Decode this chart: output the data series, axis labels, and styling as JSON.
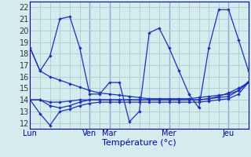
{
  "xlabel": "Température (°c)",
  "ylim": [
    11.5,
    22.5
  ],
  "xlim": [
    0,
    44
  ],
  "yticks": [
    12,
    13,
    14,
    15,
    16,
    17,
    18,
    19,
    20,
    21,
    22
  ],
  "xtick_positions": [
    0,
    12,
    16,
    28,
    40
  ],
  "xtick_labels": [
    "Lun",
    "Ven",
    "Mar",
    "Mer",
    "Jeu"
  ],
  "background_color": "#d4ecee",
  "grid_color": "#aacccc",
  "line_color": "#1a2ecc",
  "line_x": [
    0,
    2,
    4,
    6,
    8,
    10,
    12,
    14,
    16,
    18,
    20,
    22,
    24,
    26,
    28,
    30,
    32,
    34,
    36,
    38,
    40,
    42,
    44
  ],
  "line1_y": [
    18.5,
    16.5,
    16.0,
    15.7,
    15.4,
    15.1,
    14.8,
    14.6,
    14.5,
    14.4,
    14.3,
    14.2,
    14.1,
    14.1,
    14.1,
    14.1,
    14.1,
    14.2,
    14.3,
    14.4,
    14.5,
    14.8,
    15.6
  ],
  "line2_y": [
    14.0,
    12.8,
    11.8,
    13.0,
    13.2,
    13.5,
    13.7,
    13.8,
    13.8,
    13.8,
    13.8,
    13.8,
    13.8,
    13.8,
    13.8,
    13.8,
    13.8,
    13.8,
    13.9,
    14.0,
    14.1,
    14.5,
    15.5
  ],
  "line3_y": [
    14.0,
    14.0,
    13.8,
    13.8,
    13.9,
    14.0,
    14.0,
    14.0,
    14.0,
    14.0,
    14.0,
    14.0,
    14.0,
    14.0,
    14.0,
    14.0,
    14.0,
    14.0,
    14.1,
    14.2,
    14.3,
    14.8,
    15.5
  ],
  "line4_y": [
    14.0,
    14.0,
    13.5,
    13.3,
    13.5,
    13.8,
    14.0,
    14.0,
    14.0,
    14.0,
    14.0,
    14.0,
    14.0,
    14.0,
    14.0,
    14.0,
    14.0,
    14.0,
    14.1,
    14.3,
    14.6,
    15.0,
    15.5
  ],
  "line5_y": [
    18.5,
    16.5,
    17.8,
    21.0,
    21.2,
    18.5,
    14.5,
    14.5,
    15.5,
    15.5,
    12.1,
    13.0,
    19.8,
    20.2,
    18.5,
    16.5,
    14.5,
    13.3,
    18.5,
    21.8,
    21.8,
    19.2,
    16.5
  ],
  "vline_positions": [
    12,
    16,
    28,
    40
  ],
  "xlabel_fontsize": 8,
  "tick_fontsize": 7
}
